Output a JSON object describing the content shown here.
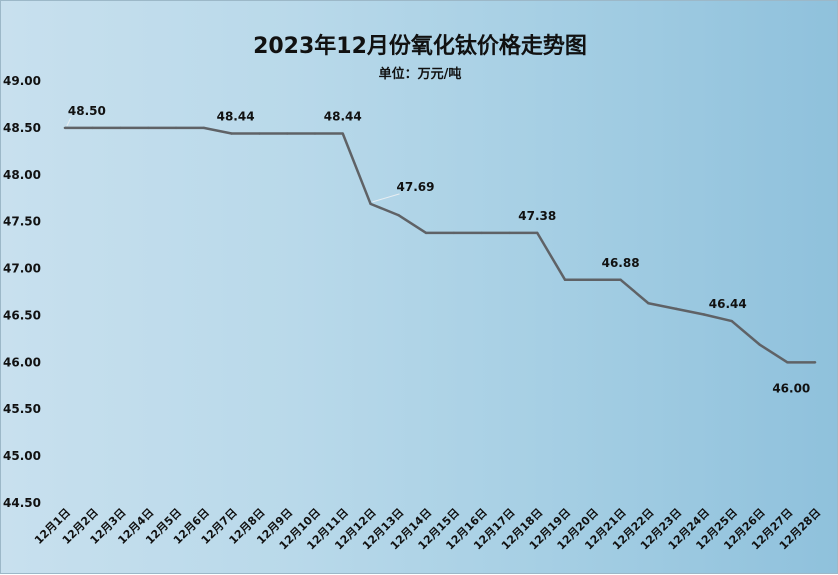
{
  "chart_data": {
    "type": "line",
    "title": "2023年12月份氧化钛价格走势图",
    "subtitle": "单位：万元/吨",
    "xlabel": "",
    "ylabel": "",
    "ylim": [
      44.5,
      49.0
    ],
    "y_ticks": [
      "44.50",
      "45.00",
      "45.50",
      "46.00",
      "46.50",
      "47.00",
      "47.50",
      "48.00",
      "48.50",
      "49.00"
    ],
    "grid": false,
    "legend": "none",
    "line_color": "#5f6266",
    "categories": [
      "12月1日",
      "12月2日",
      "12月3日",
      "12月4日",
      "12月5日",
      "12月6日",
      "12月7日",
      "12月8日",
      "12月9日",
      "12月10日",
      "12月11日",
      "12月12日",
      "12月13日",
      "12月14日",
      "12月15日",
      "12月16日",
      "12月17日",
      "12月18日",
      "12月19日",
      "12月20日",
      "12月21日",
      "12月22日",
      "12月23日",
      "12月24日",
      "12月25日",
      "12月26日",
      "12月27日",
      "12月28日"
    ],
    "values": [
      48.5,
      48.5,
      48.5,
      48.5,
      48.5,
      48.5,
      48.44,
      48.44,
      48.44,
      48.44,
      48.44,
      47.69,
      47.57,
      47.38,
      47.38,
      47.38,
      47.38,
      47.38,
      46.88,
      46.88,
      46.88,
      46.63,
      46.57,
      46.51,
      46.44,
      46.19,
      46.0,
      46.0
    ],
    "data_labels": [
      {
        "index": 0,
        "text": "48.50"
      },
      {
        "index": 6,
        "text": "48.44"
      },
      {
        "index": 10,
        "text": "48.44"
      },
      {
        "index": 11,
        "text": "47.69"
      },
      {
        "index": 17,
        "text": "47.38"
      },
      {
        "index": 20,
        "text": "46.88"
      },
      {
        "index": 24,
        "text": "46.44"
      },
      {
        "index": 26,
        "text": "46.00"
      }
    ]
  }
}
